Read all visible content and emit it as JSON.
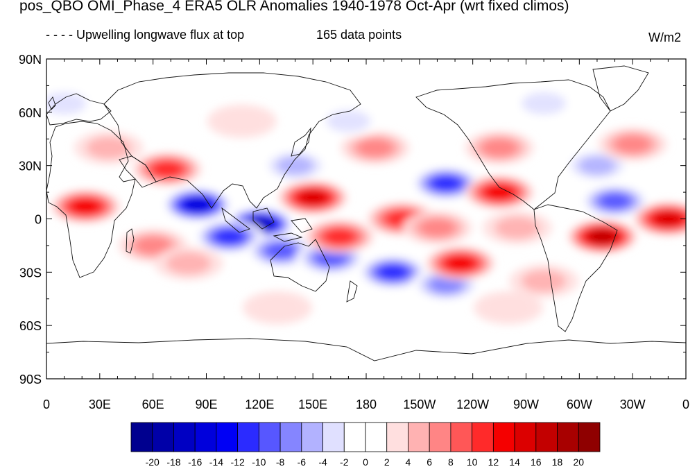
{
  "title": "pos_QBO OMI_Phase_4 ERA5 OLR Anomalies 1940-1978 Oct-Apr (wrt fixed climos)",
  "subtitle_left": "- - - -  Upwelling longwave flux at top",
  "subtitle_center": "165 data points",
  "units": "W/m2",
  "lat_labels": [
    "90N",
    "60N",
    "30N",
    "0",
    "30S",
    "60S",
    "90S"
  ],
  "lon_labels": [
    "0",
    "30E",
    "60E",
    "90E",
    "120E",
    "150E",
    "180",
    "150W",
    "120W",
    "90W",
    "60W",
    "30W",
    "0"
  ],
  "colorbar": {
    "labels": [
      "-20",
      "-18",
      "-16",
      "-14",
      "-12",
      "-10",
      "-8",
      "-6",
      "-4",
      "-2",
      "0",
      "2",
      "4",
      "6",
      "8",
      "10",
      "12",
      "14",
      "16",
      "18",
      "20"
    ],
    "colors": [
      "#00008f",
      "#0000a8",
      "#0000c3",
      "#0000dc",
      "#0000f5",
      "#2b2bff",
      "#5757ff",
      "#8585ff",
      "#b2b2ff",
      "#e0e0ff",
      "#ffffff",
      "#ffffff",
      "#ffdfdf",
      "#ffb2b2",
      "#ff8585",
      "#ff5757",
      "#ff2a2a",
      "#f50000",
      "#dc0000",
      "#c30000",
      "#a80000",
      "#8f0000"
    ]
  },
  "anomaly_blobs": [
    {
      "lon": 85,
      "lat": 8,
      "value": -16
    },
    {
      "lon": 120,
      "lat": -3,
      "value": -18
    },
    {
      "lon": 103,
      "lat": -10,
      "value": -12
    },
    {
      "lon": 132,
      "lat": -18,
      "value": -10
    },
    {
      "lon": 160,
      "lat": -22,
      "value": -10
    },
    {
      "lon": 195,
      "lat": -30,
      "value": -12
    },
    {
      "lon": 225,
      "lat": -37,
      "value": -8
    },
    {
      "lon": 225,
      "lat": 20,
      "value": -12
    },
    {
      "lon": 320,
      "lat": 10,
      "value": -10
    },
    {
      "lon": 140,
      "lat": 30,
      "value": -6
    },
    {
      "lon": 310,
      "lat": 30,
      "value": -5
    },
    {
      "lon": 150,
      "lat": 12,
      "value": 14
    },
    {
      "lon": 200,
      "lat": 0,
      "value": 10
    },
    {
      "lon": 165,
      "lat": -10,
      "value": 10
    },
    {
      "lon": 233,
      "lat": -25,
      "value": 12
    },
    {
      "lon": 220,
      "lat": -5,
      "value": 6
    },
    {
      "lon": 255,
      "lat": 15,
      "value": 12
    },
    {
      "lon": 313,
      "lat": -10,
      "value": 16
    },
    {
      "lon": 350,
      "lat": 0,
      "value": 14
    },
    {
      "lon": 22,
      "lat": 7,
      "value": 12
    },
    {
      "lon": 68,
      "lat": 28,
      "value": 10
    },
    {
      "lon": 60,
      "lat": -15,
      "value": 6
    },
    {
      "lon": 185,
      "lat": 40,
      "value": 6
    },
    {
      "lon": 255,
      "lat": 40,
      "value": 6
    },
    {
      "lon": 330,
      "lat": 42,
      "value": 6
    },
    {
      "lon": 35,
      "lat": 40,
      "value": 4
    },
    {
      "lon": 80,
      "lat": -25,
      "value": 4
    },
    {
      "lon": 265,
      "lat": -5,
      "value": 4
    },
    {
      "lon": 280,
      "lat": -35,
      "value": 4
    },
    {
      "lon": 130,
      "lat": -50,
      "value": 3
    },
    {
      "lon": 260,
      "lat": -50,
      "value": 3
    },
    {
      "lon": 280,
      "lat": 65,
      "value": -4
    },
    {
      "lon": 10,
      "lat": 65,
      "value": -4
    },
    {
      "lon": 170,
      "lat": 55,
      "value": -4
    },
    {
      "lon": 110,
      "lat": 55,
      "value": 3
    }
  ]
}
